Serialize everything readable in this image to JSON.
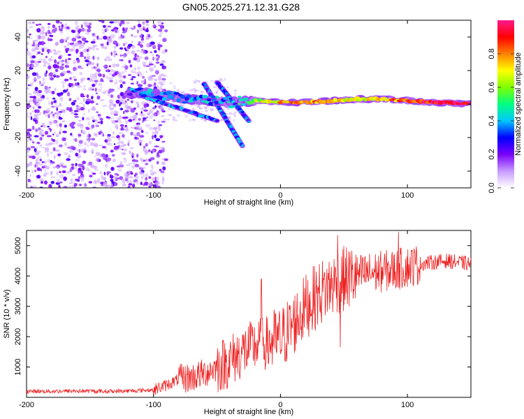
{
  "title": "GN05.2025.271.12.31.G28",
  "chart_data": [
    {
      "type": "heatmap",
      "name": "spectrogram",
      "xlabel": "Height of straight line (km)",
      "ylabel": "Frequency (Hz)",
      "xlim": [
        -200,
        150
      ],
      "ylim": [
        -50,
        50
      ],
      "xticks": [
        -200,
        -100,
        0,
        100
      ],
      "yticks": [
        -40,
        -20,
        0,
        20,
        40
      ],
      "colorbar": {
        "label": "Normalized spectral amplitude",
        "range": [
          0,
          1
        ],
        "ticks": [
          0.0,
          0.2,
          0.4,
          0.6,
          0.8
        ],
        "colors": [
          "#ffffff",
          "#c89bff",
          "#7a00ff",
          "#0000ff",
          "#00c8ff",
          "#00ff80",
          "#80ff00",
          "#ffff00",
          "#ff8000",
          "#ff0000",
          "#ff1a8c"
        ]
      },
      "noise_region_x": [
        -200,
        -90
      ],
      "dominant_ridge": [
        {
          "x": -120,
          "freq": 7,
          "amp": 0.35
        },
        {
          "x": -100,
          "freq": 6,
          "amp": 0.4
        },
        {
          "x": -80,
          "freq": 4,
          "amp": 0.35
        },
        {
          "x": -60,
          "freq": 2,
          "amp": 0.35
        },
        {
          "x": -40,
          "freq": 1,
          "amp": 0.4
        },
        {
          "x": -20,
          "freq": 2,
          "amp": 0.6
        },
        {
          "x": 0,
          "freq": 1,
          "amp": 0.75
        },
        {
          "x": 20,
          "freq": 1,
          "amp": 0.8
        },
        {
          "x": 40,
          "freq": 2,
          "amp": 0.75
        },
        {
          "x": 60,
          "freq": 3,
          "amp": 0.7
        },
        {
          "x": 80,
          "freq": 3,
          "amp": 0.75
        },
        {
          "x": 100,
          "freq": 2,
          "amp": 0.85
        },
        {
          "x": 120,
          "freq": 1,
          "amp": 0.95
        },
        {
          "x": 150,
          "freq": 0,
          "amp": 1.0
        }
      ],
      "descending_streaks": [
        {
          "x_start": -60,
          "freq_start": 12,
          "x_end": -30,
          "freq_end": -25
        },
        {
          "x_start": -50,
          "freq_start": 13,
          "x_end": -25,
          "freq_end": -10
        },
        {
          "x_start": -110,
          "freq_start": 5,
          "x_end": -50,
          "freq_end": -10
        }
      ]
    },
    {
      "type": "line",
      "name": "snr",
      "xlabel": "Height of straight line (km)",
      "ylabel": "SNR (10 * v/v)",
      "xlim": [
        -200,
        150
      ],
      "ylim": [
        0,
        5500
      ],
      "xticks": [
        -200,
        -100,
        0,
        100
      ],
      "yticks": [
        1000,
        2000,
        3000,
        4000,
        5000
      ],
      "color": "#ee2222",
      "series": [
        {
          "x": -200,
          "y": 200
        },
        {
          "x": -180,
          "y": 200
        },
        {
          "x": -160,
          "y": 210
        },
        {
          "x": -140,
          "y": 200
        },
        {
          "x": -120,
          "y": 210
        },
        {
          "x": -100,
          "y": 250
        },
        {
          "x": -90,
          "y": 400
        },
        {
          "x": -80,
          "y": 600
        },
        {
          "x": -70,
          "y": 650
        },
        {
          "x": -60,
          "y": 800
        },
        {
          "x": -50,
          "y": 1000
        },
        {
          "x": -40,
          "y": 1200
        },
        {
          "x": -30,
          "y": 1500
        },
        {
          "x": -20,
          "y": 1700
        },
        {
          "x": -10,
          "y": 1800
        },
        {
          "x": 0,
          "y": 1900
        },
        {
          "x": 10,
          "y": 2400
        },
        {
          "x": 20,
          "y": 3000
        },
        {
          "x": 30,
          "y": 3400
        },
        {
          "x": 40,
          "y": 3700
        },
        {
          "x": 50,
          "y": 3900
        },
        {
          "x": 60,
          "y": 4000
        },
        {
          "x": 70,
          "y": 4100
        },
        {
          "x": 80,
          "y": 4150
        },
        {
          "x": 90,
          "y": 4200
        },
        {
          "x": 100,
          "y": 4300
        },
        {
          "x": 110,
          "y": 4400
        },
        {
          "x": 120,
          "y": 4450
        },
        {
          "x": 130,
          "y": 4500
        },
        {
          "x": 140,
          "y": 4450
        },
        {
          "x": 150,
          "y": 4400
        }
      ],
      "spikes": [
        {
          "x": -15,
          "y": 3900
        },
        {
          "x": 45,
          "y": 5350
        },
        {
          "x": 47,
          "y": 1650
        },
        {
          "x": 93,
          "y": 5450
        }
      ]
    }
  ]
}
